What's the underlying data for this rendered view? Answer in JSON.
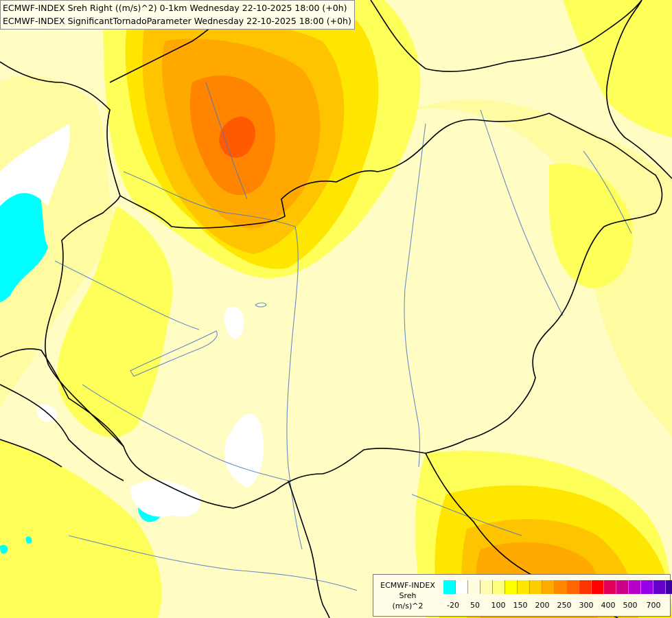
{
  "header": {
    "line1": "ECMWF-INDEX Sreh Right ((m/s)^2) 0-1km Wednesday 22-10-2025 18:00 (+0h)",
    "line2": "ECMWF-INDEX SignificantTornadoParameter Wednesday 22-10-2025 18:00 (+0h)"
  },
  "legend": {
    "model": "ECMWF-INDEX",
    "param": "Sreh",
    "unit": "(m/s)^2",
    "colors": [
      "#00ffff",
      "#ffffff",
      "#fffde0",
      "#fffbb0",
      "#ffff80",
      "#ffff00",
      "#ffe600",
      "#ffcc00",
      "#ffaa00",
      "#ff8800",
      "#ff6600",
      "#ff3300",
      "#ff0000",
      "#e0005a",
      "#cc0088",
      "#b400c8",
      "#9600e6",
      "#6400c8",
      "#3c00a0",
      "#000080"
    ],
    "ticks": [
      "-20",
      "50",
      "100",
      "150",
      "200",
      "250",
      "300",
      "400",
      "500",
      "700"
    ]
  },
  "map_colors": {
    "base": "#fffcc4",
    "light": "#fffba0",
    "yellow": "#ffff5a",
    "gold": "#ffe600",
    "amber": "#ffc400",
    "orange": "#ffa800",
    "dark_orange": "#ff8400",
    "red_orange": "#ff5a00",
    "cyan": "#00ffff",
    "white": "#ffffff",
    "border": "#000000",
    "river": "#4a78c8"
  }
}
